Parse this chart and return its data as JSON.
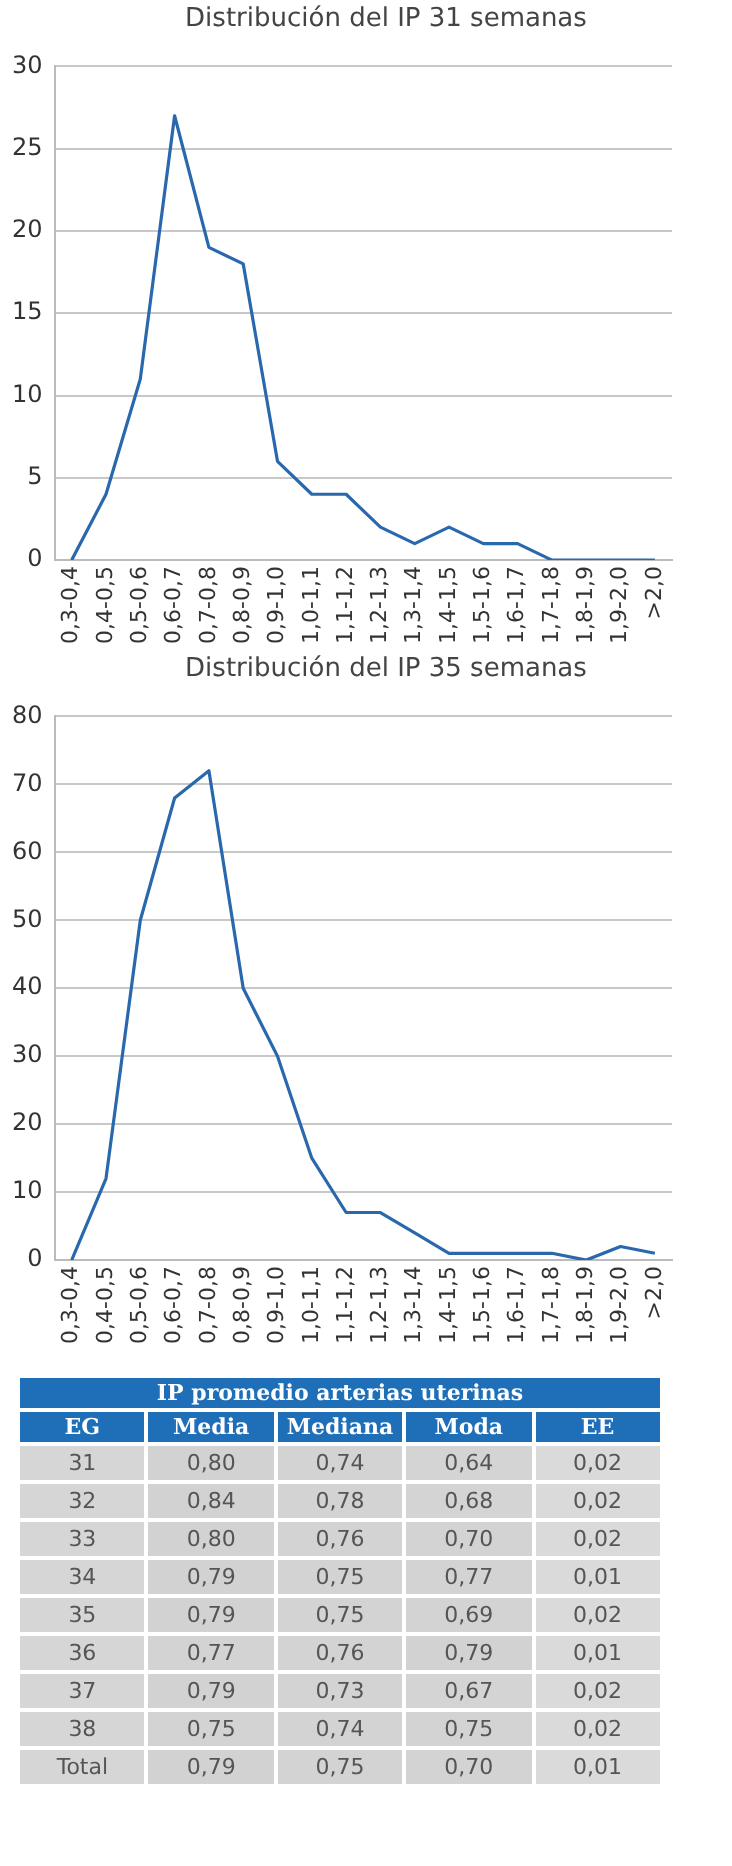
{
  "chart_data": [
    {
      "type": "line",
      "title": "Distribución del IP 31 semanas",
      "categories": [
        "0,3-0,4",
        "0,4-0,5",
        "0,5-0,6",
        "0,6-0,7",
        "0,7-0,8",
        "0,8-0,9",
        "0,9-1,0",
        "1,0-1,1",
        "1,1-1,2",
        "1,2-1,3",
        "1,3-1,4",
        "1,4-1,5",
        "1,5-1,6",
        "1,6-1,7",
        "1,7-1,8",
        "1,8-1,9",
        "1,9-2,0",
        ">2,0"
      ],
      "series": [
        {
          "color": "#2a68ad",
          "values": [
            0,
            4,
            11,
            27,
            19,
            18,
            6,
            4,
            4,
            2,
            1,
            2,
            1,
            1,
            0,
            0,
            0,
            0
          ]
        }
      ],
      "ylim": [
        0,
        30
      ],
      "yticks": [
        0,
        5,
        10,
        15,
        20,
        25,
        30
      ],
      "grid": "y",
      "marker": "none",
      "line_style": "solid"
    },
    {
      "type": "line",
      "title": "Distribución del IP 35 semanas",
      "categories": [
        "0,3-0,4",
        "0,4-0,5",
        "0,5-0,6",
        "0,6-0,7",
        "0,7-0,8",
        "0,8-0,9",
        "0,9-1,0",
        "1,0-1,1",
        "1,1-1,2",
        "1,2-1,3",
        "1,3-1,4",
        "1,4-1,5",
        "1,5-1,6",
        "1,6-1,7",
        "1,7-1,8",
        "1,8-1,9",
        "1,9-2,0",
        ">2,0"
      ],
      "series": [
        {
          "color": "#2a68ad",
          "values": [
            0,
            12,
            50,
            68,
            72,
            40,
            30,
            15,
            7,
            7,
            4,
            1,
            1,
            1,
            1,
            0,
            2,
            1
          ]
        }
      ],
      "ylim": [
        0,
        80
      ],
      "yticks": [
        0,
        10,
        20,
        30,
        40,
        50,
        60,
        70,
        80
      ],
      "grid": "y",
      "marker": "none",
      "line_style": "solid"
    },
    {
      "type": "heatmap",
      "title": "IP promedio arterias uterinas",
      "ylabel": "EG",
      "categories": [
        "Media",
        "Mediana",
        "Moda",
        "EE"
      ],
      "y_categories": [
        "31",
        "32",
        "33",
        "34",
        "35",
        "36",
        "37",
        "38",
        "Total"
      ],
      "cells": [
        [
          0.8,
          0.74,
          0.64,
          0.02
        ],
        [
          0.84,
          0.78,
          0.68,
          0.02
        ],
        [
          0.8,
          0.76,
          0.7,
          0.02
        ],
        [
          0.79,
          0.75,
          0.77,
          0.01
        ],
        [
          0.79,
          0.75,
          0.69,
          0.02
        ],
        [
          0.77,
          0.76,
          0.79,
          0.01
        ],
        [
          0.79,
          0.73,
          0.67,
          0.02
        ],
        [
          0.75,
          0.74,
          0.75,
          0.02
        ],
        [
          0.79,
          0.75,
          0.7,
          0.01
        ]
      ],
      "cell_labels": [
        [
          "0,80",
          "0,74",
          "0,64",
          "0,02"
        ],
        [
          "0,84",
          "0,78",
          "0,68",
          "0,02"
        ],
        [
          "0,80",
          "0,76",
          "0,70",
          "0,02"
        ],
        [
          "0,79",
          "0,75",
          "0,77",
          "0,01"
        ],
        [
          "0,79",
          "0,75",
          "0,69",
          "0,02"
        ],
        [
          "0,77",
          "0,76",
          "0,79",
          "0,01"
        ],
        [
          "0,79",
          "0,73",
          "0,67",
          "0,02"
        ],
        [
          "0,75",
          "0,74",
          "0,75",
          "0,02"
        ],
        [
          "0,79",
          "0,75",
          "0,70",
          "0,01"
        ]
      ]
    }
  ]
}
